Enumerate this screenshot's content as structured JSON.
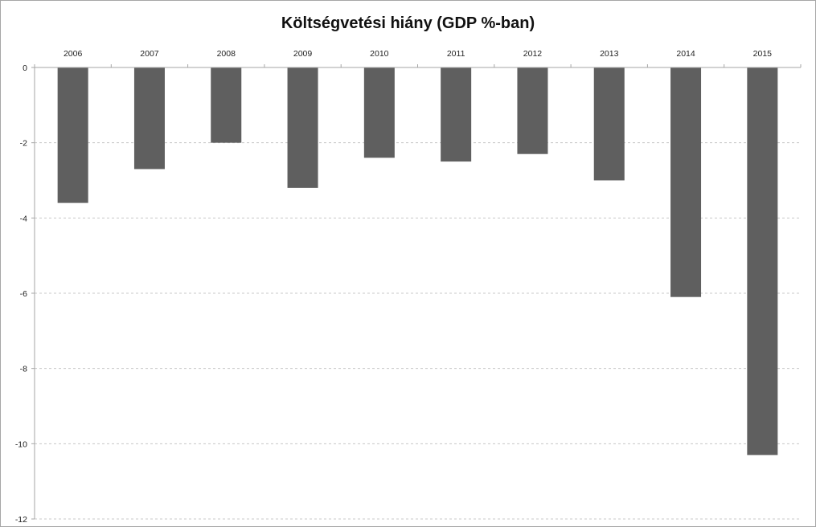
{
  "chart_data": {
    "type": "bar",
    "title": "Költségvetési hiány (GDP %-ban)",
    "xlabel": "",
    "ylabel": "",
    "categories": [
      "2006",
      "2007",
      "2008",
      "2009",
      "2010",
      "2011",
      "2012",
      "2013",
      "2014",
      "2015"
    ],
    "values": [
      -3.6,
      -2.7,
      -2.0,
      -3.2,
      -2.4,
      -2.5,
      -2.3,
      -3.0,
      -6.1,
      -10.3
    ],
    "ylim": [
      -12,
      0
    ],
    "yticks": [
      "0",
      "-2",
      "-4",
      "-6",
      "-8",
      "-10",
      "-12"
    ],
    "ytick_values": [
      0,
      -2,
      -4,
      -6,
      -8,
      -10,
      -12
    ],
    "category_axis_position": "top",
    "grid": "horizontal dashed",
    "legend": "none",
    "colors": {
      "bar": "#5f5f5f",
      "grid": "#c8c8c8",
      "axis": "#a6a6a6",
      "border": "#a6a6a6"
    }
  }
}
